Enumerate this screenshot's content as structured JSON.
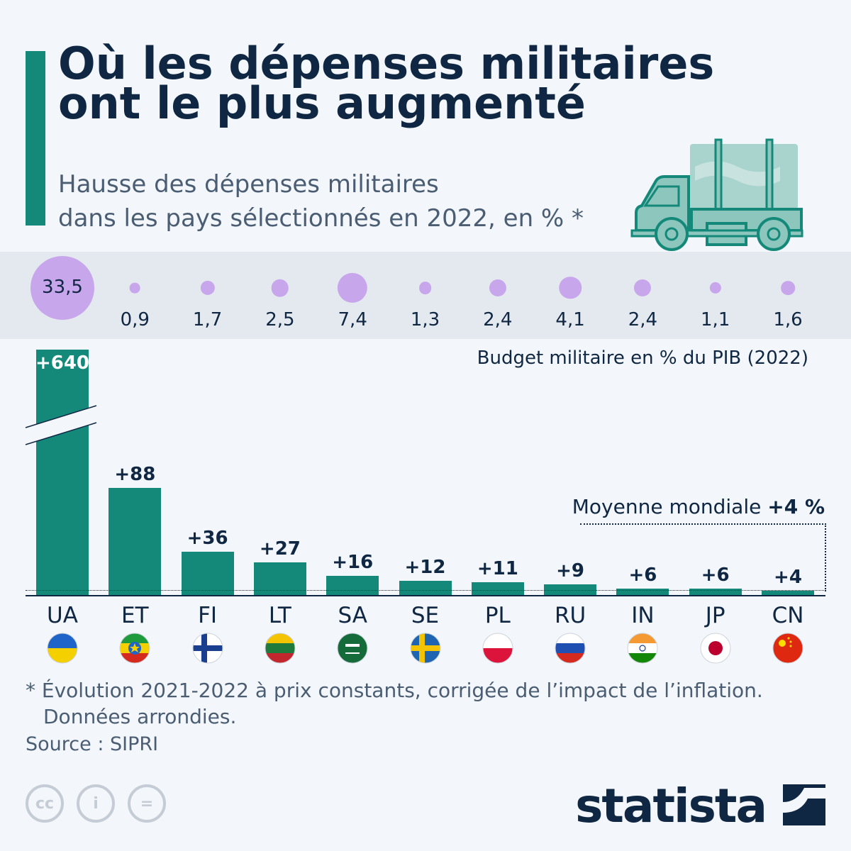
{
  "title": "Où les dépenses militaires ont le plus augmenté",
  "subtitle_line1": "Hausse des dépenses militaires",
  "subtitle_line2": "dans les pays sélectionnés en 2022, en % *",
  "gdp_label": "Budget militaire en % du PIB (2022)",
  "average_label": "Moyenne mondiale",
  "average_value": "+4 %",
  "footnote_line1": "* Évolution 2021-2022 à prix constants, corrigée de l’impact de l’inflation.",
  "footnote_line2": "Données arrondies.",
  "source": "Source : SIPRI",
  "logo": "statista",
  "license_icons": [
    "cc-icon",
    "attribution-icon",
    "no-derivatives-icon"
  ],
  "colors": {
    "bar": "#14897a",
    "bubble": "#c8a6ec",
    "text": "#0f2742"
  },
  "chart_data": {
    "type": "bar",
    "categories": [
      "UA",
      "ET",
      "FI",
      "LT",
      "SA",
      "SE",
      "PL",
      "RU",
      "IN",
      "JP",
      "CN"
    ],
    "values": [
      640,
      88,
      36,
      27,
      16,
      12,
      11,
      9,
      6,
      6,
      4
    ],
    "value_labels": [
      "+640",
      "+88",
      "+36",
      "+27",
      "+16",
      "+12",
      "+11",
      "+9",
      "+6",
      "+6",
      "+4"
    ],
    "axis_break_on": "UA",
    "reference_line": {
      "label": "Moyenne mondiale",
      "value": 4
    },
    "gdp_share": [
      33.5,
      0.9,
      1.7,
      2.5,
      7.4,
      1.3,
      2.4,
      4.1,
      2.4,
      1.1,
      1.6
    ],
    "gdp_share_labels": [
      "33,5",
      "0,9",
      "1,7",
      "2,5",
      "7,4",
      "1,3",
      "2,4",
      "4,1",
      "2,4",
      "1,1",
      "1,6"
    ],
    "flags": [
      "ukraine-flag",
      "ethiopia-flag",
      "finland-flag",
      "lithuania-flag",
      "saudi-arabia-flag",
      "sweden-flag",
      "poland-flag",
      "russia-flag",
      "india-flag",
      "japan-flag",
      "china-flag"
    ]
  }
}
